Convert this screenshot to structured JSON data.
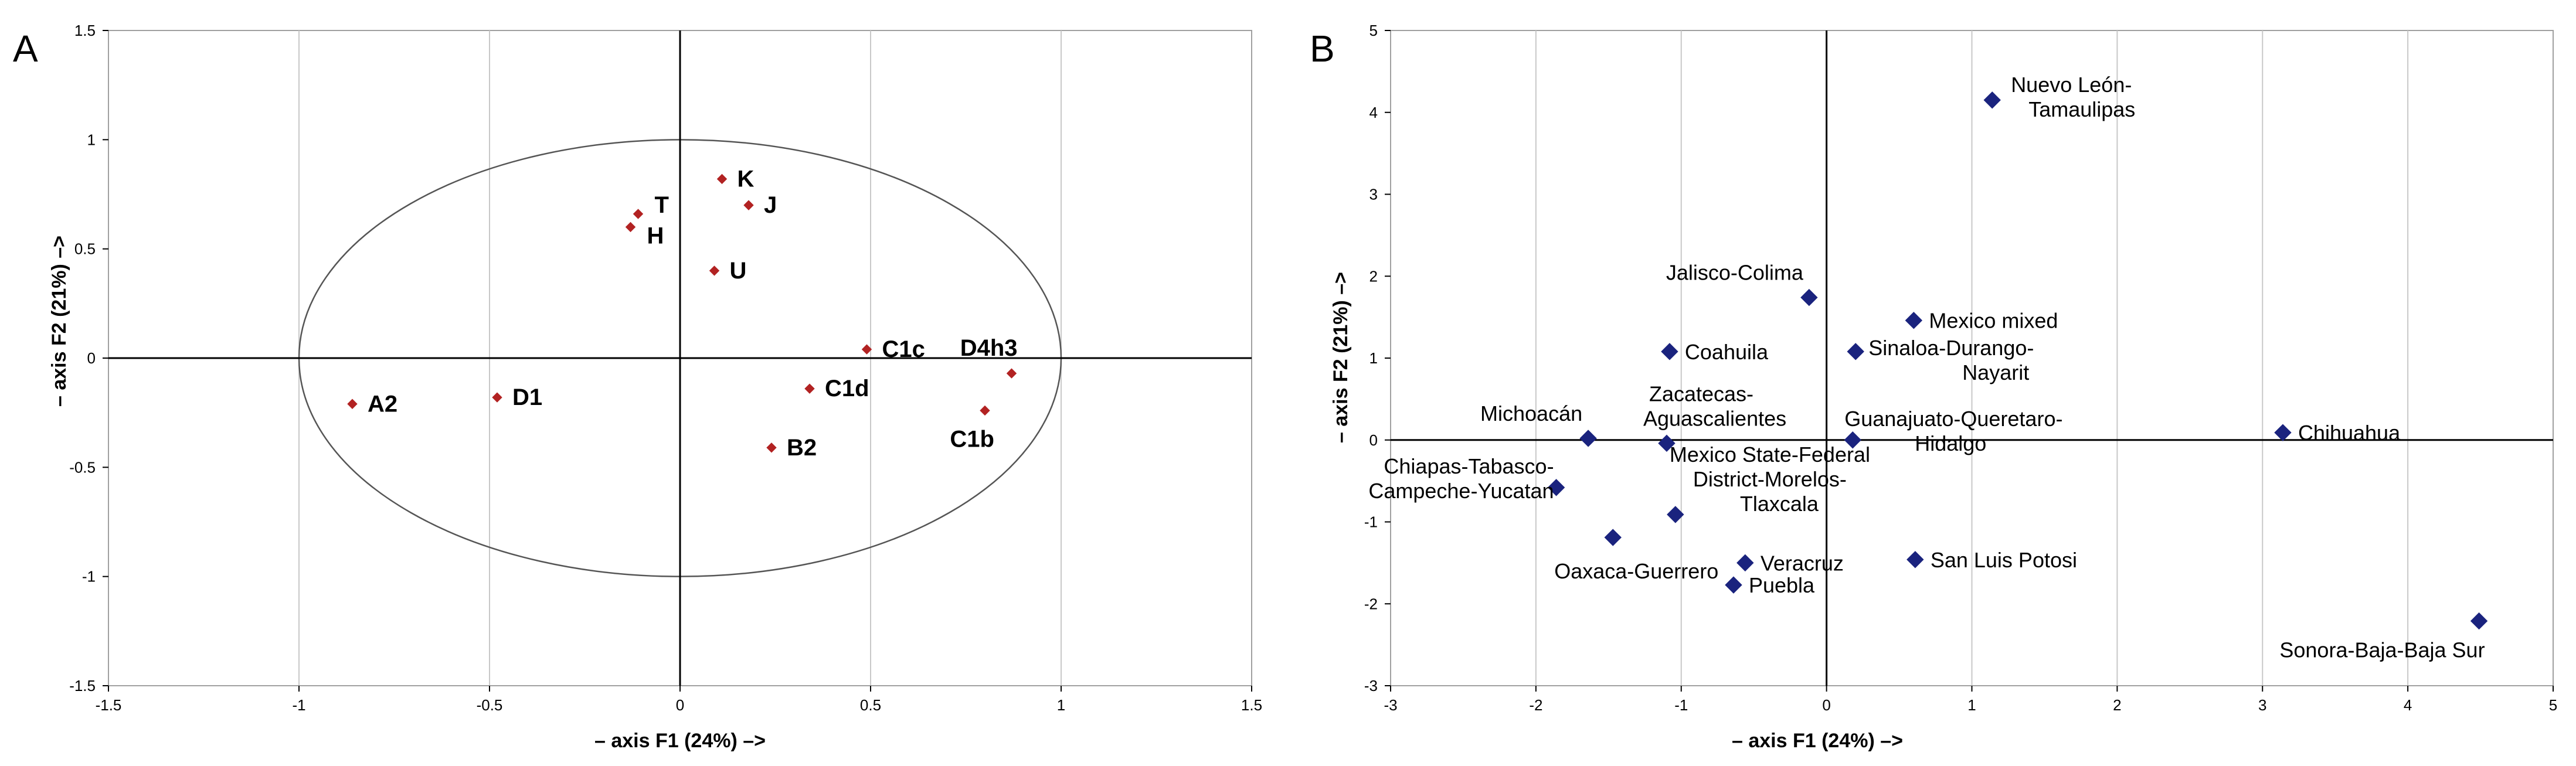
{
  "chart_data": [
    {
      "type": "scatter",
      "panel": "A",
      "title": "",
      "xlabel": "– axis F1 (24%) –>",
      "ylabel": "– axis F2 (21%) –>",
      "xlim": [
        -1.5,
        1.5
      ],
      "ylim": [
        -1.5,
        1.5
      ],
      "xticks": [
        -1.5,
        -1,
        -0.5,
        0,
        0.5,
        1,
        1.5
      ],
      "yticks": [
        -1.5,
        -1,
        -0.5,
        0,
        0.5,
        1,
        1.5
      ],
      "grid": "vertical",
      "correlation_circle": true,
      "marker_color": "#b22222",
      "points": [
        {
          "label": "A2",
          "x": -0.86,
          "y": -0.21,
          "label_pos": "right"
        },
        {
          "label": "D1",
          "x": -0.48,
          "y": -0.18,
          "label_pos": "right"
        },
        {
          "label": "T",
          "x": -0.11,
          "y": 0.66,
          "label_pos": "right-up"
        },
        {
          "label": "H",
          "x": -0.13,
          "y": 0.6,
          "label_pos": "right-down"
        },
        {
          "label": "K",
          "x": 0.11,
          "y": 0.82,
          "label_pos": "right"
        },
        {
          "label": "J",
          "x": 0.18,
          "y": 0.7,
          "label_pos": "right"
        },
        {
          "label": "U",
          "x": 0.09,
          "y": 0.4,
          "label_pos": "right"
        },
        {
          "label": "C1c",
          "x": 0.49,
          "y": 0.04,
          "label_pos": "right"
        },
        {
          "label": "C1d",
          "x": 0.34,
          "y": -0.14,
          "label_pos": "right"
        },
        {
          "label": "B2",
          "x": 0.24,
          "y": -0.41,
          "label_pos": "right"
        },
        {
          "label": "D4h3",
          "x": 0.87,
          "y": -0.07,
          "label_pos": "above-left"
        },
        {
          "label": "C1b",
          "x": 0.8,
          "y": -0.24,
          "label_pos": "below-left"
        }
      ]
    },
    {
      "type": "scatter",
      "panel": "B",
      "title": "",
      "xlabel": "– axis F1 (24%) –>",
      "ylabel": "– axis F2 (21%) –>",
      "xlim": [
        -3,
        5
      ],
      "ylim": [
        -3,
        5
      ],
      "xticks": [
        -3,
        -2,
        -1,
        0,
        1,
        2,
        3,
        4,
        5
      ],
      "yticks": [
        -3,
        -2,
        -1,
        0,
        1,
        2,
        3,
        4,
        5
      ],
      "grid": "vertical",
      "marker_color": "#1a237e",
      "points": [
        {
          "label": "Nuevo León-\nTamaulipas",
          "x": 1.14,
          "y": 4.15,
          "label_pos": "right"
        },
        {
          "label": "Jalisco-Colima",
          "x": -0.12,
          "y": 1.74,
          "label_pos": "above-left"
        },
        {
          "label": "Mexico mixed",
          "x": 0.6,
          "y": 1.46,
          "label_pos": "right"
        },
        {
          "label": "Sinaloa-Durango-\nNayarit",
          "x": 0.2,
          "y": 1.08,
          "label_pos": "right"
        },
        {
          "label": "Coahuila",
          "x": -1.08,
          "y": 1.08,
          "label_pos": "right"
        },
        {
          "label": "Michoacán",
          "x": -1.64,
          "y": 0.02,
          "label_pos": "above-left"
        },
        {
          "label": "Zacatecas-\nAguascalientes",
          "x": -1.1,
          "y": -0.04,
          "label_pos": "above-right"
        },
        {
          "label": "Guanajuato-Queretaro-\nHidalgo",
          "x": 0.18,
          "y": 0.0,
          "label_pos": "right"
        },
        {
          "label": "Chihuahua",
          "x": 3.14,
          "y": 0.09,
          "label_pos": "right"
        },
        {
          "label": "Chiapas-Tabasco-\nCampeche-Yucatan",
          "x": -1.86,
          "y": -0.58,
          "label_pos": "left"
        },
        {
          "label": "Mexico State-Federal\nDistrict-Morelos-\nTlaxcala",
          "x": -1.04,
          "y": -0.91,
          "label_pos": "above-right"
        },
        {
          "label": "Oaxaca-Guerrero",
          "x": -1.47,
          "y": -1.19,
          "label_pos": "below"
        },
        {
          "label": "Veracruz",
          "x": -0.56,
          "y": -1.5,
          "label_pos": "right"
        },
        {
          "label": "Puebla",
          "x": -0.64,
          "y": -1.77,
          "label_pos": "right"
        },
        {
          "label": "San Luis Potosi",
          "x": 0.61,
          "y": -1.46,
          "label_pos": "right"
        },
        {
          "label": "Sonora-Baja-Baja Sur",
          "x": 4.49,
          "y": -2.21,
          "label_pos": "below-left"
        }
      ]
    }
  ]
}
